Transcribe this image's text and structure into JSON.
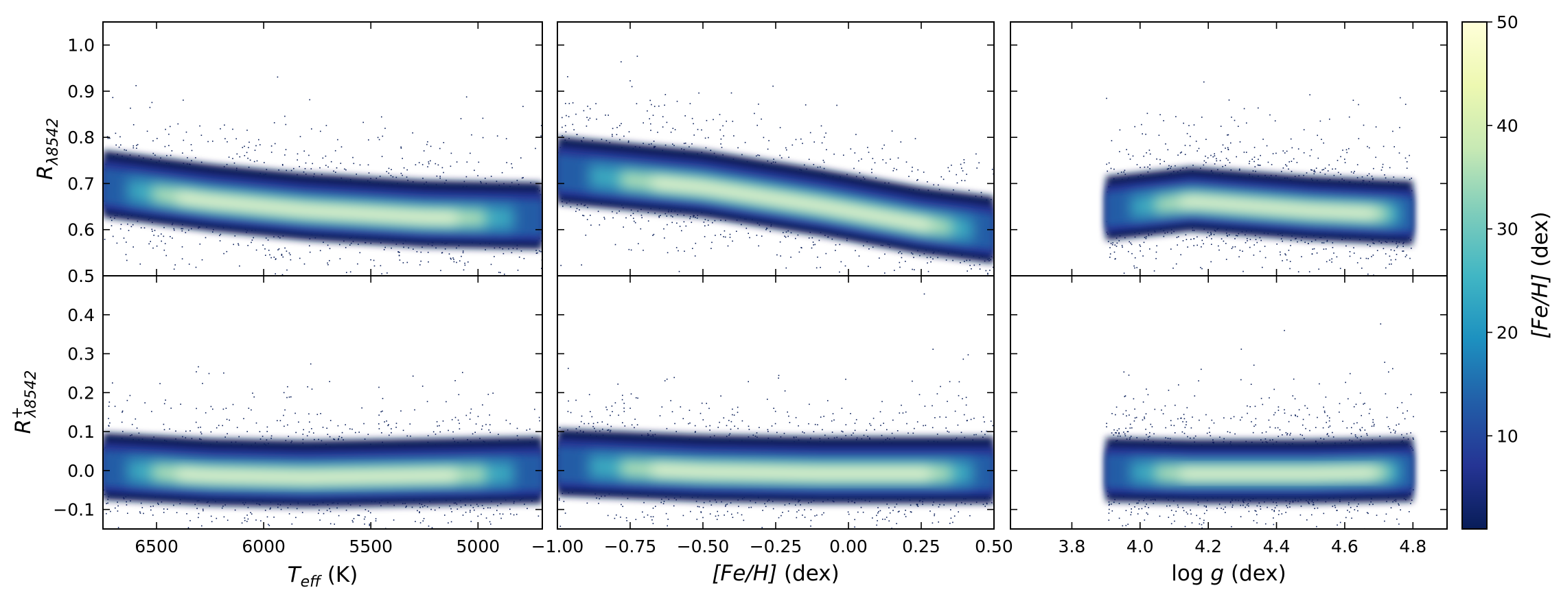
{
  "chart_data": {
    "type": "heatmap",
    "colormap": "YlGnBu_r",
    "colors": [
      "#081d58",
      "#253494",
      "#225ea8",
      "#1d91c0",
      "#41b6c4",
      "#7fcdbb",
      "#c7e9b4",
      "#edf8b1",
      "#ffffd9"
    ],
    "colorbar": {
      "label_main": "[Fe/H]",
      "label_unit": " (dex)",
      "range": [
        1,
        50
      ],
      "ticks": [
        "10",
        "20",
        "30",
        "40",
        "50"
      ],
      "tick_values": [
        10,
        20,
        30,
        40,
        50
      ]
    },
    "columns": [
      {
        "xlabel_main": "T",
        "xlabel_sub": "eff",
        "xlabel_unit": " (K)",
        "xlim": [
          6750,
          4700
        ],
        "ticks": [
          "6500",
          "6000",
          "5500",
          "5000"
        ],
        "tick_values": [
          6500,
          6000,
          5500,
          5000
        ]
      },
      {
        "xlabel_main": "[Fe/H]",
        "xlabel_sub": "",
        "xlabel_unit": " (dex)",
        "xlim": [
          -1.0,
          0.5
        ],
        "ticks": [
          "−1.00",
          "−0.75",
          "−0.50",
          "−0.25",
          "0.00",
          "0.25",
          "0.50"
        ],
        "tick_values": [
          -1.0,
          -0.75,
          -0.5,
          -0.25,
          0.0,
          0.25,
          0.5
        ]
      },
      {
        "xlabel_main": "log ",
        "xlabel_sub": "g",
        "xlabel_unit": " (dex)",
        "xlim": [
          3.62,
          4.9
        ],
        "ticks": [
          "3.8",
          "4.0",
          "4.2",
          "4.4",
          "4.6",
          "4.8"
        ],
        "tick_values": [
          3.8,
          4.0,
          4.2,
          4.4,
          4.6,
          4.8
        ]
      }
    ],
    "rows": [
      {
        "ylabel_main": "R",
        "ylabel_sub": "λ8542",
        "ylabel_sup": "",
        "ylim": [
          0.5,
          1.05
        ],
        "ticks": [
          "0.5",
          "0.6",
          "0.7",
          "0.8",
          "0.9",
          "1.0"
        ],
        "tick_values": [
          0.5,
          0.6,
          0.7,
          0.8,
          0.9,
          1.0
        ]
      },
      {
        "ylabel_main": "R",
        "ylabel_sub": "λ8542",
        "ylabel_sup": "+",
        "ylim": [
          -0.15,
          0.5
        ],
        "ticks": [
          "−0.1",
          "0.0",
          "0.1",
          "0.2",
          "0.3",
          "0.4",
          "0.5"
        ],
        "tick_values": [
          -0.1,
          0.0,
          0.1,
          0.2,
          0.3,
          0.4,
          0.5
        ]
      }
    ],
    "density_ridges": [
      {
        "row": 0,
        "col": 0,
        "x": [
          6750,
          6250,
          5800,
          5250,
          4700
        ],
        "y": [
          0.69,
          0.66,
          0.64,
          0.625,
          0.62
        ]
      },
      {
        "row": 0,
        "col": 1,
        "x": [
          -1.0,
          -0.5,
          -0.1,
          0.25,
          0.5
        ],
        "y": [
          0.72,
          0.69,
          0.65,
          0.61,
          0.59
        ]
      },
      {
        "row": 0,
        "col": 2,
        "x": [
          3.9,
          4.15,
          4.5,
          4.8
        ],
        "y": [
          0.64,
          0.66,
          0.64,
          0.63
        ]
      },
      {
        "row": 1,
        "col": 0,
        "x": [
          6750,
          6250,
          5800,
          5250,
          4700
        ],
        "y": [
          0.0,
          -0.015,
          -0.02,
          -0.015,
          -0.01
        ]
      },
      {
        "row": 1,
        "col": 1,
        "x": [
          -1.0,
          -0.5,
          -0.1,
          0.25,
          0.5
        ],
        "y": [
          0.01,
          -0.005,
          -0.01,
          -0.01,
          -0.01
        ]
      },
      {
        "row": 1,
        "col": 2,
        "x": [
          3.9,
          4.15,
          4.5,
          4.8
        ],
        "y": [
          -0.005,
          -0.01,
          -0.01,
          -0.005
        ]
      }
    ]
  }
}
